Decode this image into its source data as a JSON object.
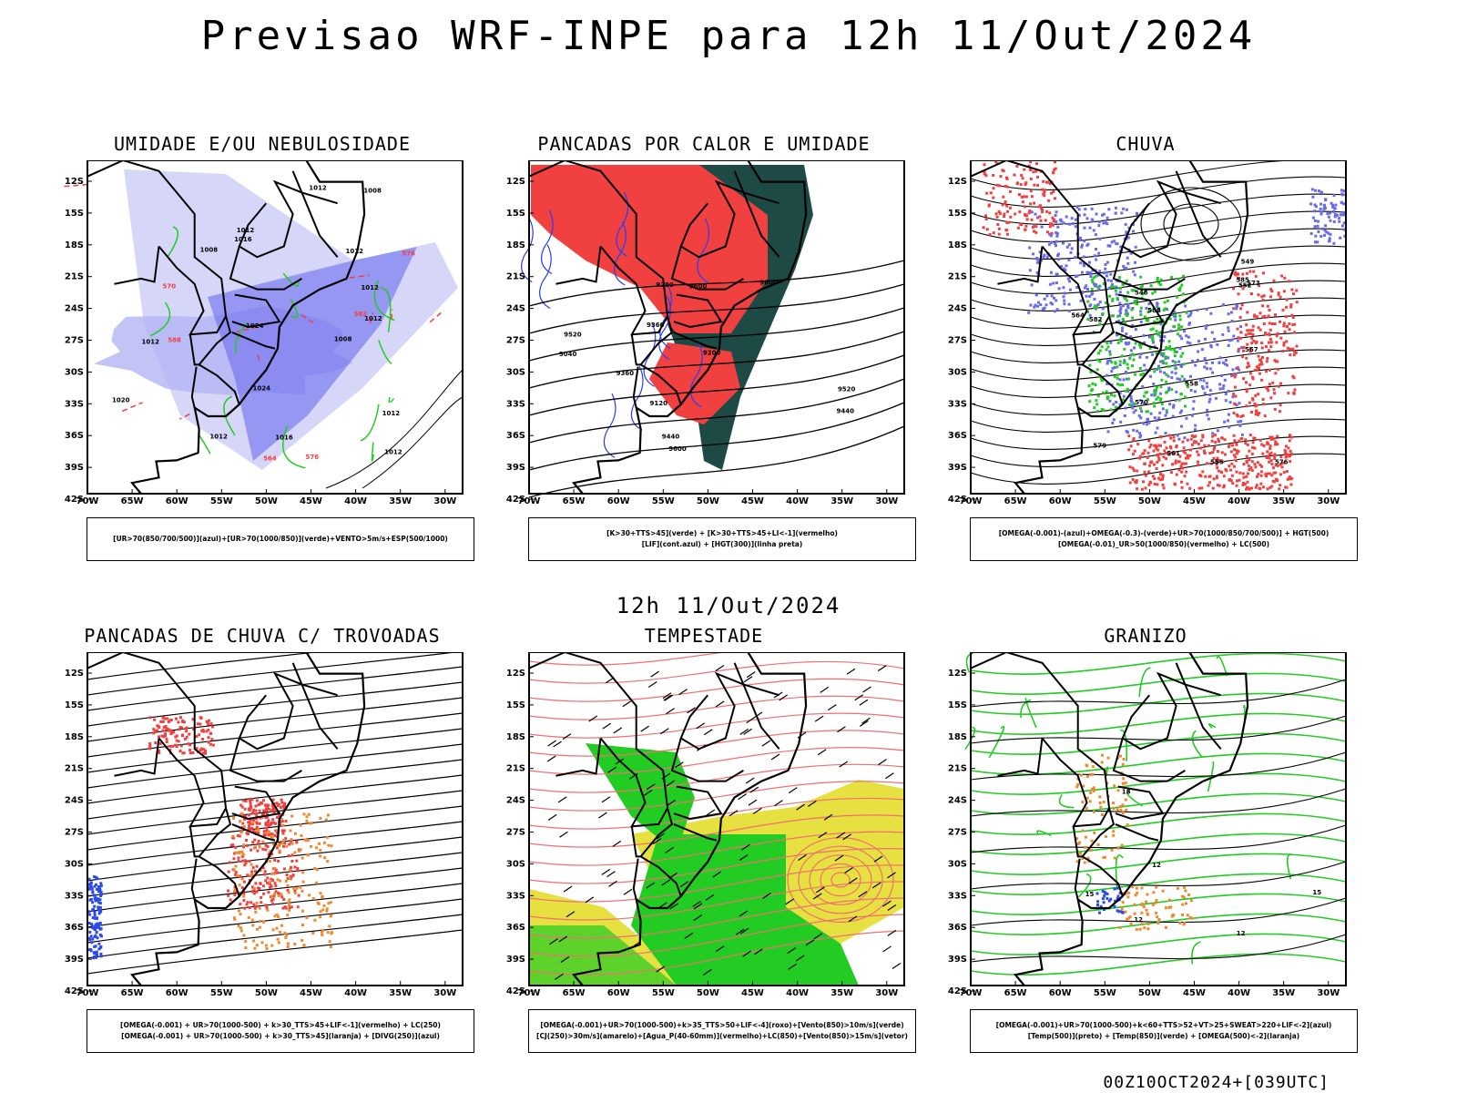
{
  "main_title": "Previsao WRF-INPE  para 12h 11/Out/2024",
  "mid_title": "12h 11/Out/2024",
  "footer": "00Z10OCT2024+[039UTC]",
  "axes": {
    "lat_labels": [
      "12S",
      "15S",
      "18S",
      "21S",
      "24S",
      "27S",
      "30S",
      "33S",
      "36S",
      "39S",
      "42S"
    ],
    "lon_labels": [
      "70W",
      "65W",
      "60W",
      "55W",
      "50W",
      "45W",
      "40W",
      "35W",
      "30W"
    ]
  },
  "colors": {
    "blue": "#6a6aee",
    "lightblue": "#b4b4f4",
    "green": "#22cc22",
    "red": "#f04040",
    "orange": "#f08830",
    "yellow": "#e6e040",
    "darkgreen": "#1e4a46",
    "salmon": "#f07070"
  },
  "panels": [
    {
      "title": "UMIDADE E/OU NEBULOSIDADE",
      "legend": [
        "[UR>70(850/700/500)](azul)+[UR>70(1000/850)](verde)+VENTO>5m/s+ESP(500/1000)"
      ],
      "labels": [
        "1012",
        "1012",
        "1016",
        "1016",
        "1012",
        "1012",
        "1012",
        "1008",
        "1012",
        "1008",
        "1024",
        "1024",
        "1020",
        "1008",
        "1012",
        "1012",
        "1012",
        "576",
        "570",
        "564",
        "582",
        "588",
        "576"
      ]
    },
    {
      "title": "PANCADAS POR CALOR E UMIDADE",
      "legend": [
        "[K>30+TTS>45](verde) + [K>30+TTS>45+LI<-1](vermelho)",
        "[LIF](cont.azul) + [HGT(300)](linha preta)"
      ],
      "labels": [
        "9600",
        "9520",
        "9440",
        "9360",
        "9280",
        "9200",
        "9120",
        "9040",
        "9600",
        "9520",
        "9440",
        "9360",
        "9600"
      ]
    },
    {
      "title": "CHUVA",
      "legend": [
        "[OMEGA(-0.001)-(azul)+OMEGA(-0.3)-(verde)+UR>70(1000/850/700/500)] + HGT(500)",
        "[OMEGA(-0.01)_UR>50(1000/850)(vermelho) + LC(500)"
      ],
      "labels": [
        "585",
        "582",
        "579",
        "576",
        "573",
        "570",
        "567",
        "564",
        "561",
        "558",
        "555",
        "552",
        "549",
        "546",
        "588"
      ]
    },
    {
      "title": "PANCADAS DE CHUVA C/ TROVOADAS",
      "legend": [
        "[OMEGA(-0.001) + UR>70(1000-500) + k>30_TTS>45+LIF<-1](vermelho) + LC(250)",
        "[OMEGA(-0.001) + UR>70(1000-500) + k>30_TTS>45](laranja) + [DIVG(250)](azul)"
      ],
      "labels": []
    },
    {
      "title": "TEMPESTADE",
      "legend": [
        "[OMEGA(-0.001)+UR>70(1000-500)+k>35_TTS>50+LIF<-4](roxo)+[Vento(850)>10m/s](verde)",
        "[CJ(250)>30m/s](amarelo)+[Agua_P(40-60mm)](vermelho)+LC(850)+[Vento(850)>15m/s](vetor)"
      ],
      "labels": []
    },
    {
      "title": "GRANIZO",
      "legend": [
        "[OMEGA(-0.001)+UR>70(1000-500)+k<60+TTS>52+VT>25+SWEAT>220+LIF<-2](azul)",
        "[Temp(500)](preto) + [Temp(850)](verde) + [OMEGA(500)<-2](laranja)"
      ],
      "labels": [
        "12",
        "12",
        "15",
        "18",
        "12",
        "15"
      ]
    }
  ]
}
